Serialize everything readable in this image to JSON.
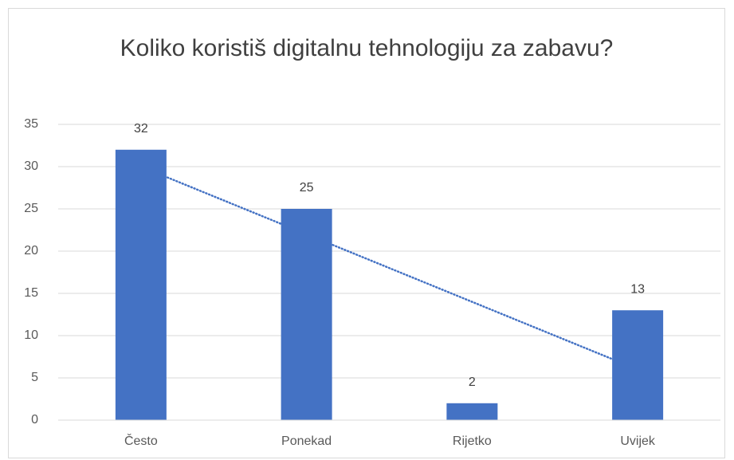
{
  "chart_data": {
    "type": "bar",
    "title": "Koliko koristiš digitalnu tehnologiju za zabavu?",
    "categories": [
      "Često",
      "Ponekad",
      "Rijetko",
      "Uvijek"
    ],
    "values": [
      32,
      25,
      2,
      13
    ],
    "color": "#4472c4",
    "ylim": [
      0,
      35
    ],
    "yticks": [
      0,
      5,
      10,
      15,
      20,
      25,
      30,
      35
    ],
    "grid": true,
    "trendline": "linear",
    "data_labels": true
  }
}
